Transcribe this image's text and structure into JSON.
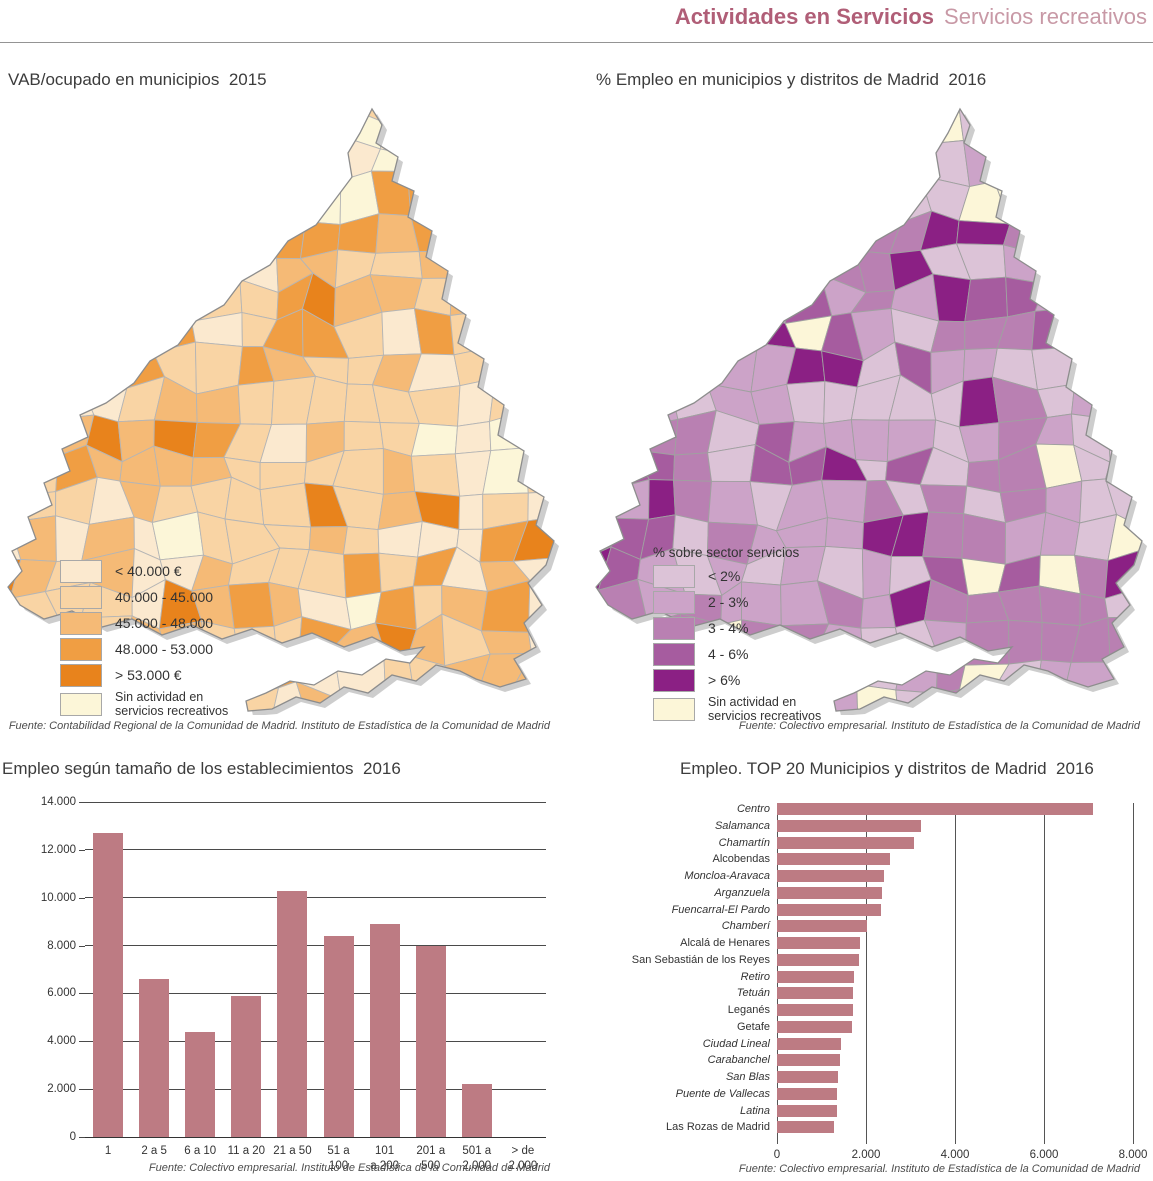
{
  "header": {
    "title_bold": "Actividades en Servicios",
    "title_light": "Servicios recreativos"
  },
  "maps": {
    "left": {
      "title": "VAB/ocupado en municipios  2015",
      "legend": [
        {
          "label": "< 40.000 €",
          "color": "#fbe9cf"
        },
        {
          "label": "40.000 - 45.000",
          "color": "#f9d4a4"
        },
        {
          "label": "45.000 - 48.000",
          "color": "#f5ba76"
        },
        {
          "label": "48.000 - 53.000",
          "color": "#f09e43"
        },
        {
          "label": "> 53.000 €",
          "color": "#e8831c"
        },
        {
          "label": "Sin actividad en\nservicios recreativos",
          "color": "#fcf6d8"
        }
      ],
      "no_activity_color": "#fcf6d8",
      "source": "Fuente: Contabilidad Regional de la Comunidad de Madrid. Instituto de Estadística de la Comunidad de Madrid"
    },
    "right": {
      "title": "% Empleo en municipios y distritos de Madrid  2016",
      "legend_title": "% sobre sector servicios",
      "legend": [
        {
          "label": "< 2%",
          "color": "#dcc3d7"
        },
        {
          "label": "2 - 3%",
          "color": "#cca3c8"
        },
        {
          "label": "3 - 4%",
          "color": "#b980b2"
        },
        {
          "label": "4 - 6%",
          "color": "#a65c9f"
        },
        {
          "label": "> 6%",
          "color": "#8b2084"
        },
        {
          "label": "Sin actividad en\nservicios recreativos",
          "color": "#fcf6d8"
        }
      ],
      "no_activity_color": "#fcf6d8",
      "source": "Fuente: Colectivo empresarial. Instituto de Estadística de la Comunidad de Madrid"
    }
  },
  "chart_data": [
    {
      "type": "bar",
      "orientation": "vertical",
      "title": "Empleo según tamaño de los establecimientos  2016",
      "categories": [
        "1",
        "2 a 5",
        "6 a 10",
        "11 a 20",
        "21 a 50",
        "51 a\n100",
        "101\na 200",
        "201 a\n500",
        "501 a\n2.000",
        "> de\n2.000"
      ],
      "values": [
        12700,
        6600,
        4400,
        5900,
        10300,
        8400,
        8900,
        8000,
        2200,
        0
      ],
      "xlabel": "",
      "ylabel": "",
      "ylim": [
        0,
        14000
      ],
      "yticks": [
        0,
        2000,
        4000,
        6000,
        8000,
        10000,
        12000,
        14000
      ],
      "ytick_labels": [
        "0",
        "2.000",
        "4.000",
        "6.000",
        "8.000",
        "10.000",
        "12.000",
        "14.000"
      ],
      "grid": true,
      "bar_color": "#bd7b83",
      "source": "Fuente: Colectivo empresarial. Instituto de Estadística de la Comunidad de Madrid"
    },
    {
      "type": "bar",
      "orientation": "horizontal",
      "title": "Empleo. TOP 20 Municipios y distritos de Madrid  2016",
      "categories": [
        "Centro",
        "Salamanca",
        "Chamartín",
        "Alcobendas",
        "Moncloa-Aravaca",
        "Arganzuela",
        "Fuencarral-El Pardo",
        "Chamberí",
        "Alcalá de Henares",
        "San Sebastián de los Reyes",
        "Retiro",
        "Tetuán",
        "Leganés",
        "Getafe",
        "Ciudad Lineal",
        "Carabanchel",
        "San Blas",
        "Puente de Vallecas",
        "Latina",
        "Las Rozas de Madrid"
      ],
      "italic_flags": [
        true,
        true,
        true,
        false,
        true,
        true,
        true,
        true,
        false,
        false,
        true,
        true,
        false,
        false,
        true,
        true,
        true,
        true,
        true,
        false
      ],
      "values": [
        7100,
        3230,
        3080,
        2550,
        2400,
        2370,
        2330,
        2020,
        1860,
        1850,
        1720,
        1705,
        1700,
        1690,
        1435,
        1405,
        1360,
        1345,
        1340,
        1285
      ],
      "xlabel": "",
      "ylabel": "",
      "xlim": [
        0,
        8000
      ],
      "xticks": [
        0,
        2000,
        4000,
        6000,
        8000
      ],
      "xtick_labels": [
        "0",
        "2.000",
        "4.000",
        "6.000",
        "8.000"
      ],
      "grid": true,
      "bar_color": "#bd7b83",
      "source": "Fuente: Colectivo empresarial. Instituto de Estadística de la Comunidad de Madrid"
    }
  ]
}
